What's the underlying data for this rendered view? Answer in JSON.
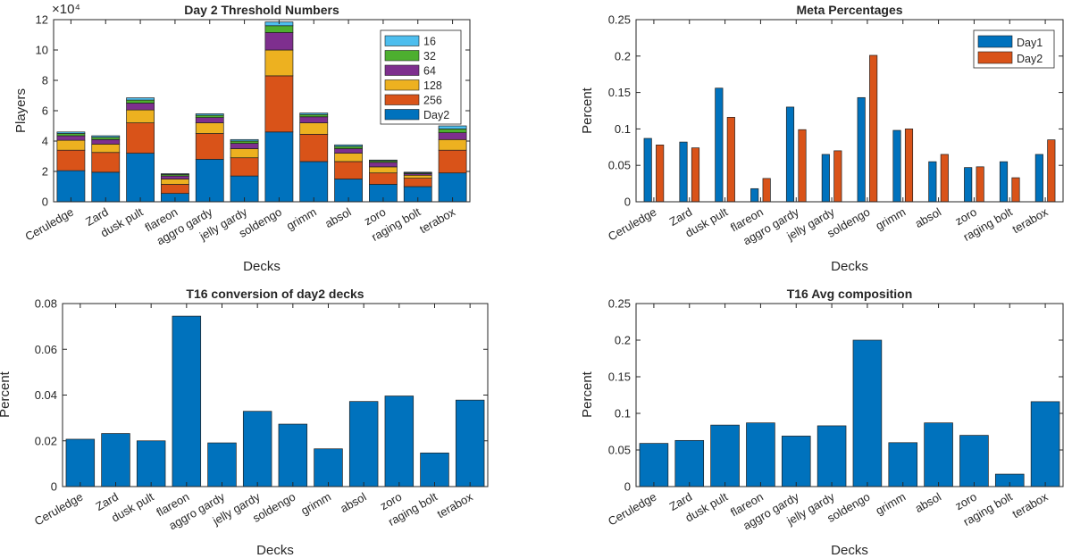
{
  "chart_data": [
    {
      "type": "bar",
      "stacked": true,
      "title": "Day 2 Threshold Numbers",
      "xlabel": "Decks",
      "ylabel": "Players",
      "exponent_label": "×10⁴",
      "ylim": [
        0,
        12
      ],
      "yticks": [
        "0",
        "2",
        "4",
        "6",
        "8",
        "10",
        "12"
      ],
      "categories": [
        "Ceruledge",
        "Zard",
        "dusk pult",
        "flareon",
        "aggro gardy",
        "jelly gardy",
        "soldengo",
        "grimm",
        "absol",
        "zoro",
        "raging bolt",
        "terabox"
      ],
      "legend_position": "top-right",
      "legend_order": [
        "16",
        "32",
        "64",
        "128",
        "256",
        "Day2"
      ],
      "series": [
        {
          "name": "Day2",
          "color": "#0072BD",
          "values": [
            2.05,
            1.95,
            3.2,
            0.55,
            2.8,
            1.7,
            4.6,
            2.65,
            1.5,
            1.15,
            1.0,
            1.9
          ]
        },
        {
          "name": "256",
          "color": "#D95319",
          "values": [
            1.35,
            1.3,
            2.0,
            0.6,
            1.7,
            1.2,
            3.7,
            1.8,
            1.15,
            0.75,
            0.55,
            1.5
          ]
        },
        {
          "name": "128",
          "color": "#EDB120",
          "values": [
            0.65,
            0.55,
            0.85,
            0.35,
            0.7,
            0.6,
            1.7,
            0.75,
            0.55,
            0.4,
            0.2,
            0.7
          ]
        },
        {
          "name": "64",
          "color": "#7E2F8E",
          "values": [
            0.3,
            0.3,
            0.45,
            0.2,
            0.35,
            0.35,
            1.15,
            0.4,
            0.3,
            0.3,
            0.1,
            0.45
          ]
        },
        {
          "name": "32",
          "color": "#4DAF2F",
          "values": [
            0.15,
            0.15,
            0.2,
            0.1,
            0.15,
            0.15,
            0.45,
            0.15,
            0.15,
            0.1,
            0.05,
            0.25
          ]
        },
        {
          "name": "16",
          "color": "#4DBEEE",
          "values": [
            0.1,
            0.1,
            0.15,
            0.05,
            0.1,
            0.1,
            0.25,
            0.1,
            0.1,
            0.05,
            0.05,
            0.2
          ]
        }
      ]
    },
    {
      "type": "bar",
      "stacked": false,
      "title": "Meta Percentages",
      "xlabel": "Decks",
      "ylabel": "Percent",
      "ylim": [
        0,
        0.25
      ],
      "yticks": [
        "0",
        "0.05",
        "0.1",
        "0.15",
        "0.2",
        "0.25"
      ],
      "categories": [
        "Ceruledge",
        "Zard",
        "dusk pult",
        "flareon",
        "aggro gardy",
        "jelly gardy",
        "soldengo",
        "grimm",
        "absol",
        "zoro",
        "raging bolt",
        "terabox"
      ],
      "legend_position": "top-right",
      "legend_order": [
        "Day1",
        "Day2"
      ],
      "series": [
        {
          "name": "Day1",
          "color": "#0072BD",
          "values": [
            0.087,
            0.082,
            0.156,
            0.018,
            0.13,
            0.065,
            0.143,
            0.098,
            0.055,
            0.047,
            0.055,
            0.065
          ]
        },
        {
          "name": "Day2",
          "color": "#D95319",
          "values": [
            0.078,
            0.074,
            0.116,
            0.032,
            0.099,
            0.07,
            0.201,
            0.1,
            0.065,
            0.048,
            0.033,
            0.085
          ]
        }
      ]
    },
    {
      "type": "bar",
      "stacked": false,
      "title": "T16 conversion of day2 decks",
      "xlabel": "Decks",
      "ylabel": "Percent",
      "ylim": [
        0,
        0.08
      ],
      "yticks": [
        "0",
        "0.02",
        "0.04",
        "0.06",
        "0.08"
      ],
      "categories": [
        "Ceruledge",
        "Zard",
        "dusk pult",
        "flareon",
        "aggro gardy",
        "jelly gardy",
        "soldengo",
        "grimm",
        "absol",
        "zoro",
        "raging bolt",
        "terabox"
      ],
      "series": [
        {
          "color": "#0072BD",
          "values": [
            0.0207,
            0.0232,
            0.02,
            0.0745,
            0.0191,
            0.0329,
            0.0273,
            0.0165,
            0.0372,
            0.0396,
            0.0147,
            0.0378
          ]
        }
      ]
    },
    {
      "type": "bar",
      "stacked": false,
      "title": "T16 Avg composition",
      "xlabel": "Decks",
      "ylabel": "Percent",
      "ylim": [
        0,
        0.25
      ],
      "yticks": [
        "0",
        "0.05",
        "0.1",
        "0.15",
        "0.2",
        "0.25"
      ],
      "categories": [
        "Ceruledge",
        "Zard",
        "dusk pult",
        "flareon",
        "aggro gardy",
        "jelly gardy",
        "soldengo",
        "grimm",
        "absol",
        "zoro",
        "raging bolt",
        "terabox"
      ],
      "series": [
        {
          "color": "#0072BD",
          "values": [
            0.059,
            0.063,
            0.084,
            0.087,
            0.069,
            0.083,
            0.2,
            0.06,
            0.087,
            0.07,
            0.017,
            0.116
          ]
        }
      ]
    }
  ]
}
